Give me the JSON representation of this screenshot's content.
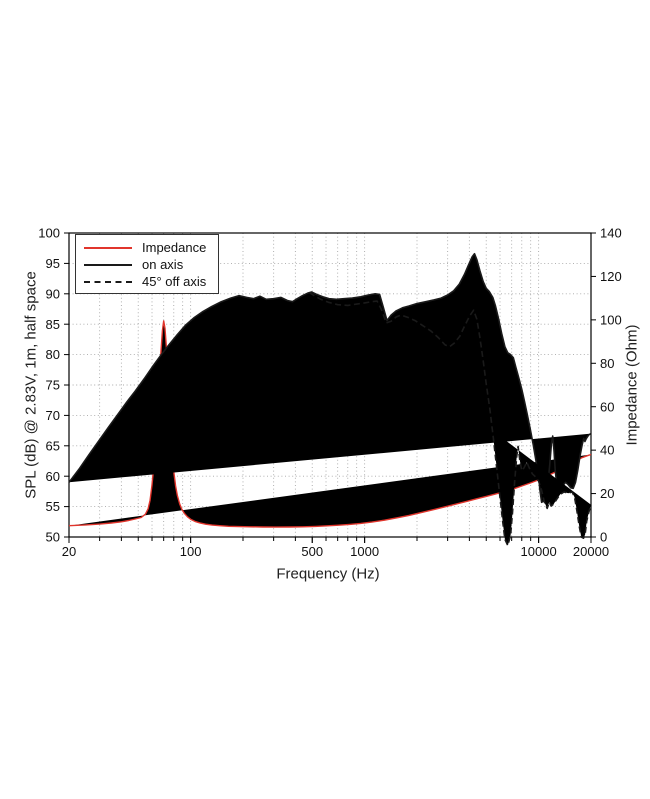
{
  "figure": {
    "xlabel": "Frequency (Hz)",
    "ylabel_left": "SPL (dB) @ 2.83V, 1m, half space",
    "ylabel_right": "Impedance (Ohm)"
  },
  "colors": {
    "impedance": "#e1352c",
    "on_axis": "#1a1a1a",
    "off_axis": "#1a1a1a",
    "grid": "#a8a8a8",
    "frame": "#000000"
  },
  "chart_data": {
    "type": "line",
    "title": "",
    "xlabel": "Frequency (Hz)",
    "ylabel_left": "SPL (dB) @ 2.83V, 1m, half space",
    "ylabel_right": "Impedance (Ohm)",
    "x_scale": "log",
    "xlim": [
      20,
      20000
    ],
    "ylim_left": [
      50,
      100
    ],
    "ylim_right": [
      0,
      140
    ],
    "grid": "dotted",
    "legend_position": "upper-left",
    "legend": [
      "Impedance",
      "on axis",
      "45° off axis"
    ],
    "x_ticks_labeled": [
      20,
      100,
      500,
      1000,
      10000,
      20000
    ],
    "x_grid_minor": [
      30,
      40,
      50,
      60,
      70,
      80,
      90,
      200,
      300,
      400,
      500,
      600,
      700,
      800,
      900,
      2000,
      3000,
      4000,
      5000,
      6000,
      7000,
      8000,
      9000
    ],
    "x_grid_major": [
      100,
      1000,
      10000
    ],
    "y_ticks_left": [
      50,
      55,
      60,
      65,
      70,
      75,
      80,
      85,
      90,
      95,
      100
    ],
    "y_ticks_right": [
      0,
      20,
      40,
      60,
      80,
      100,
      120,
      140
    ],
    "series": [
      {
        "name": "Impedance",
        "axis": "right",
        "unit": "Ohm",
        "color": "#e1352c",
        "style": "solid",
        "points": [
          [
            20,
            5.2
          ],
          [
            25,
            5.55
          ],
          [
            30,
            5.95
          ],
          [
            35,
            6.45
          ],
          [
            40,
            7.0
          ],
          [
            44,
            7.6
          ],
          [
            48,
            8.3
          ],
          [
            52,
            9.0
          ],
          [
            55,
            10.5
          ],
          [
            57,
            13
          ],
          [
            58.5,
            17
          ],
          [
            60,
            24
          ],
          [
            61.5,
            33
          ],
          [
            63,
            45
          ],
          [
            64.5,
            58
          ],
          [
            66,
            72
          ],
          [
            67.5,
            85
          ],
          [
            68.8,
            95
          ],
          [
            70,
            99.5
          ],
          [
            71.2,
            96
          ],
          [
            72.5,
            88
          ],
          [
            74,
            74
          ],
          [
            75.5,
            60
          ],
          [
            77,
            48
          ],
          [
            78.5,
            38
          ],
          [
            80,
            30
          ],
          [
            82,
            23.5
          ],
          [
            84,
            19
          ],
          [
            86.5,
            15.2
          ],
          [
            89,
            12.8
          ],
          [
            92,
            10.9
          ],
          [
            96,
            9.3
          ],
          [
            100,
            8.2
          ],
          [
            106,
            7.2
          ],
          [
            113,
            6.5
          ],
          [
            122,
            5.9
          ],
          [
            133,
            5.5
          ],
          [
            147,
            5.2
          ],
          [
            165,
            4.95
          ],
          [
            190,
            4.8
          ],
          [
            220,
            4.68
          ],
          [
            260,
            4.6
          ],
          [
            310,
            4.57
          ],
          [
            370,
            4.62
          ],
          [
            440,
            4.72
          ],
          [
            520,
            4.9
          ],
          [
            610,
            5.15
          ],
          [
            710,
            5.45
          ],
          [
            820,
            5.8
          ],
          [
            950,
            6.25
          ],
          [
            1100,
            6.85
          ],
          [
            1300,
            7.75
          ],
          [
            1550,
            8.9
          ],
          [
            1800,
            9.95
          ],
          [
            2100,
            11.2
          ],
          [
            2500,
            12.6
          ],
          [
            2900,
            13.9
          ],
          [
            3400,
            15.3
          ],
          [
            3900,
            16.5
          ],
          [
            4400,
            17.6
          ],
          [
            5000,
            18.7
          ],
          [
            5600,
            19.7
          ],
          [
            6300,
            20.8
          ],
          [
            7100,
            22.0
          ],
          [
            8000,
            23.5
          ],
          [
            9000,
            24.9
          ],
          [
            10000,
            26.3
          ],
          [
            11100,
            27.9
          ],
          [
            12300,
            29.7
          ],
          [
            13600,
            31.6
          ],
          [
            15000,
            33.5
          ],
          [
            16500,
            35.3
          ],
          [
            18000,
            36.7
          ],
          [
            19000,
            37.4
          ],
          [
            20000,
            38.0
          ]
        ]
      },
      {
        "name": "on axis",
        "axis": "left",
        "unit": "dB",
        "color": "#1a1a1a",
        "style": "solid",
        "points": [
          [
            20,
            59.0
          ],
          [
            23,
            61.3
          ],
          [
            26,
            63.5
          ],
          [
            30,
            66.0
          ],
          [
            34,
            68.2
          ],
          [
            38,
            70.1
          ],
          [
            43,
            72.2
          ],
          [
            48,
            74.0
          ],
          [
            54,
            76.0
          ],
          [
            60,
            77.9
          ],
          [
            67,
            79.8
          ],
          [
            75,
            81.6
          ],
          [
            84,
            83.3
          ],
          [
            94,
            84.9
          ],
          [
            105,
            86.1
          ],
          [
            118,
            87.1
          ],
          [
            132,
            87.9
          ],
          [
            150,
            88.7
          ],
          [
            170,
            89.3
          ],
          [
            190,
            89.7
          ],
          [
            210,
            89.4
          ],
          [
            230,
            89.2
          ],
          [
            250,
            89.6
          ],
          [
            272,
            89.1
          ],
          [
            300,
            89.2
          ],
          [
            330,
            89.4
          ],
          [
            360,
            88.9
          ],
          [
            385,
            88.7
          ],
          [
            410,
            89.2
          ],
          [
            440,
            89.7
          ],
          [
            470,
            90.1
          ],
          [
            495,
            90.3
          ],
          [
            530,
            89.9
          ],
          [
            575,
            89.5
          ],
          [
            625,
            89.2
          ],
          [
            690,
            89.1
          ],
          [
            760,
            89.2
          ],
          [
            850,
            89.3
          ],
          [
            950,
            89.5
          ],
          [
            1050,
            89.8
          ],
          [
            1150,
            90.0
          ],
          [
            1220,
            89.9
          ],
          [
            1280,
            87.8
          ],
          [
            1345,
            85.6
          ],
          [
            1420,
            86.5
          ],
          [
            1520,
            87.2
          ],
          [
            1650,
            87.7
          ],
          [
            1800,
            88.0
          ],
          [
            2000,
            88.4
          ],
          [
            2250,
            88.7
          ],
          [
            2500,
            89.0
          ],
          [
            2750,
            89.3
          ],
          [
            3000,
            89.8
          ],
          [
            3250,
            90.5
          ],
          [
            3500,
            91.6
          ],
          [
            3750,
            93.2
          ],
          [
            3950,
            94.7
          ],
          [
            4150,
            96.1
          ],
          [
            4280,
            96.6
          ],
          [
            4420,
            95.6
          ],
          [
            4600,
            93.8
          ],
          [
            4800,
            92.0
          ],
          [
            5000,
            90.9
          ],
          [
            5200,
            90.4
          ],
          [
            5450,
            89.4
          ],
          [
            5650,
            88.0
          ],
          [
            5900,
            85.8
          ],
          [
            6150,
            83.3
          ],
          [
            6400,
            81.3
          ],
          [
            6650,
            80.3
          ],
          [
            6900,
            80.0
          ],
          [
            7150,
            79.5
          ],
          [
            7400,
            77.9
          ],
          [
            7700,
            76.1
          ],
          [
            8000,
            74.3
          ],
          [
            8300,
            72.3
          ],
          [
            8600,
            70.2
          ],
          [
            8950,
            67.8
          ],
          [
            9300,
            65.3
          ],
          [
            9650,
            62.6
          ],
          [
            9850,
            60.8
          ],
          [
            9975,
            60.9
          ],
          [
            10150,
            58.0
          ],
          [
            10400,
            55.7
          ],
          [
            10650,
            55.9
          ],
          [
            10950,
            56.8
          ],
          [
            11300,
            58.6
          ],
          [
            11600,
            62.0
          ],
          [
            11850,
            65.3
          ],
          [
            12050,
            66.6
          ],
          [
            12250,
            64.2
          ],
          [
            12450,
            61.0
          ],
          [
            12700,
            58.7
          ],
          [
            13000,
            58.0
          ],
          [
            13400,
            58.9
          ],
          [
            13800,
            58.5
          ],
          [
            14300,
            59.0
          ],
          [
            14800,
            58.6
          ],
          [
            15300,
            58.1
          ],
          [
            15800,
            58.0
          ],
          [
            16300,
            59.0
          ],
          [
            16800,
            61.0
          ],
          [
            17300,
            63.3
          ],
          [
            17800,
            65.2
          ],
          [
            18150,
            66.2
          ],
          [
            18450,
            65.7
          ],
          [
            18800,
            66.2
          ],
          [
            19400,
            66.8
          ],
          [
            20000,
            67.0
          ]
        ]
      },
      {
        "name": "45° off axis",
        "axis": "left",
        "unit": "dB",
        "color": "#1a1a1a",
        "style": "dashed",
        "points": [
          [
            480,
            90.2
          ],
          [
            520,
            89.6
          ],
          [
            560,
            89.1
          ],
          [
            620,
            88.6
          ],
          [
            700,
            88.2
          ],
          [
            800,
            88.1
          ],
          [
            900,
            88.3
          ],
          [
            1000,
            88.5
          ],
          [
            1100,
            88.7
          ],
          [
            1180,
            88.8
          ],
          [
            1250,
            87.4
          ],
          [
            1330,
            85.2
          ],
          [
            1420,
            85.5
          ],
          [
            1520,
            86.2
          ],
          [
            1620,
            86.5
          ],
          [
            1780,
            86.1
          ],
          [
            1950,
            85.6
          ],
          [
            2150,
            84.8
          ],
          [
            2400,
            83.9
          ],
          [
            2650,
            82.8
          ],
          [
            2900,
            81.6
          ],
          [
            3080,
            81.3
          ],
          [
            3280,
            81.9
          ],
          [
            3520,
            83.0
          ],
          [
            3770,
            84.8
          ],
          [
            4020,
            86.4
          ],
          [
            4230,
            87.3
          ],
          [
            4420,
            85.8
          ],
          [
            4600,
            82.8
          ],
          [
            4800,
            79.0
          ],
          [
            5000,
            75.2
          ],
          [
            5250,
            71.0
          ],
          [
            5500,
            66.2
          ],
          [
            5750,
            61.2
          ],
          [
            6000,
            56.5
          ],
          [
            6200,
            52.8
          ],
          [
            6400,
            49.6
          ],
          [
            6650,
            48.6
          ],
          [
            6900,
            50.3
          ],
          [
            7080,
            54.0
          ],
          [
            7280,
            59.0
          ],
          [
            7480,
            63.2
          ],
          [
            7620,
            64.9
          ],
          [
            7800,
            62.6
          ],
          [
            8000,
            60.9
          ],
          [
            8250,
            61.4
          ],
          [
            8550,
            62.3
          ],
          [
            8850,
            61.3
          ],
          [
            9200,
            60.4
          ],
          [
            9600,
            59.9
          ],
          [
            10000,
            59.2
          ],
          [
            10400,
            57.7
          ],
          [
            10800,
            55.7
          ],
          [
            11200,
            54.7
          ],
          [
            11500,
            55.7
          ],
          [
            11800,
            55.1
          ],
          [
            12200,
            55.4
          ],
          [
            12700,
            56.2
          ],
          [
            13300,
            57.0
          ],
          [
            14000,
            57.4
          ],
          [
            14800,
            57.2
          ],
          [
            15600,
            57.4
          ],
          [
            16100,
            56.5
          ],
          [
            16600,
            54.3
          ],
          [
            17100,
            51.8
          ],
          [
            17600,
            50.0
          ],
          [
            18100,
            49.8
          ],
          [
            18500,
            50.4
          ],
          [
            18900,
            52.6
          ],
          [
            19400,
            54.0
          ],
          [
            20000,
            55.3
          ]
        ]
      }
    ]
  }
}
